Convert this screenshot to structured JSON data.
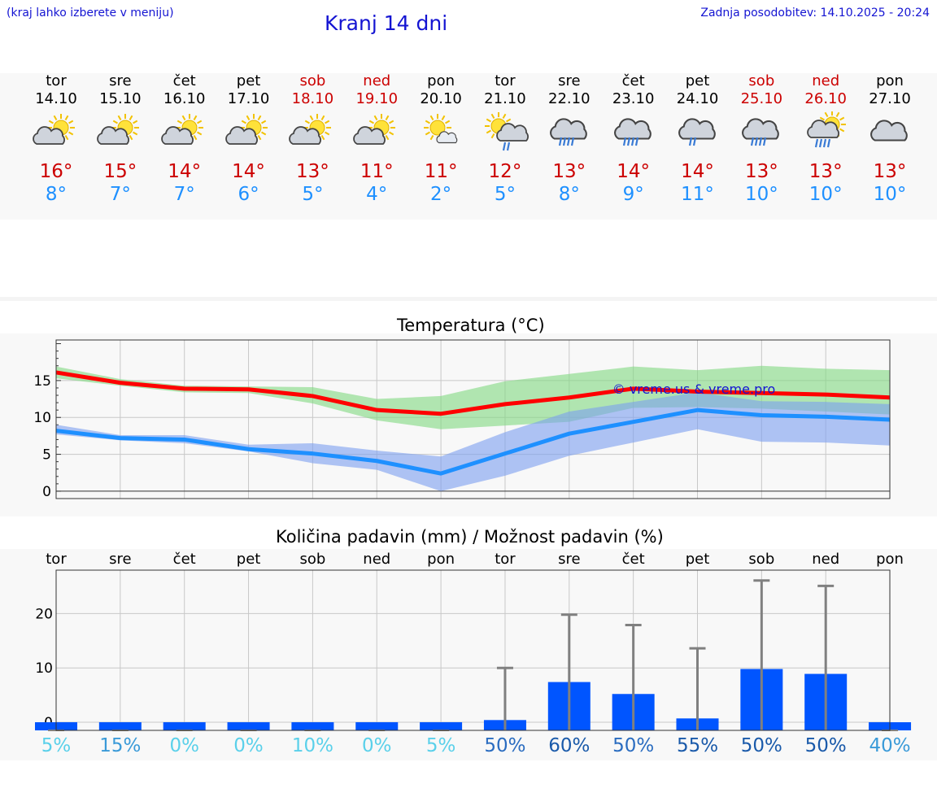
{
  "header": {
    "menu_hint": "(kraj lahko izberete v meniju)",
    "title": "Kranj 14 dni",
    "last_update": "Zadnja posodobitev: 14.10.2025 - 20:24"
  },
  "days": [
    {
      "name": "tor",
      "date": "14.10",
      "weekend": false,
      "icon": "partly-sunny-icon",
      "tmax": "16°",
      "tmin": "8°"
    },
    {
      "name": "sre",
      "date": "15.10",
      "weekend": false,
      "icon": "partly-sunny-icon",
      "tmax": "15°",
      "tmin": "7°"
    },
    {
      "name": "čet",
      "date": "16.10",
      "weekend": false,
      "icon": "partly-sunny-icon",
      "tmax": "14°",
      "tmin": "7°"
    },
    {
      "name": "pet",
      "date": "17.10",
      "weekend": false,
      "icon": "partly-sunny-icon",
      "tmax": "14°",
      "tmin": "6°"
    },
    {
      "name": "sob",
      "date": "18.10",
      "weekend": true,
      "icon": "partly-sunny-icon",
      "tmax": "13°",
      "tmin": "5°"
    },
    {
      "name": "ned",
      "date": "19.10",
      "weekend": true,
      "icon": "partly-sunny-icon",
      "tmax": "11°",
      "tmin": "4°"
    },
    {
      "name": "pon",
      "date": "20.10",
      "weekend": false,
      "icon": "sun-small-cloud-icon",
      "tmax": "11°",
      "tmin": "2°"
    },
    {
      "name": "tor",
      "date": "21.10",
      "weekend": false,
      "icon": "sun-cloud-rain-icon",
      "tmax": "12°",
      "tmin": "5°"
    },
    {
      "name": "sre",
      "date": "22.10",
      "weekend": false,
      "icon": "cloud-rain-icon",
      "tmax": "13°",
      "tmin": "8°"
    },
    {
      "name": "čet",
      "date": "23.10",
      "weekend": false,
      "icon": "cloud-rain-icon",
      "tmax": "14°",
      "tmin": "9°"
    },
    {
      "name": "pet",
      "date": "24.10",
      "weekend": false,
      "icon": "cloud-light-rain-icon",
      "tmax": "14°",
      "tmin": "11°"
    },
    {
      "name": "sob",
      "date": "25.10",
      "weekend": true,
      "icon": "cloud-rain-icon",
      "tmax": "13°",
      "tmin": "10°"
    },
    {
      "name": "ned",
      "date": "26.10",
      "weekend": true,
      "icon": "sun-cloud-heavy-rain-icon",
      "tmax": "13°",
      "tmin": "10°"
    },
    {
      "name": "pon",
      "date": "27.10",
      "weekend": false,
      "icon": "cloudy-icon",
      "tmax": "13°",
      "tmin": "10°"
    }
  ],
  "chart_data": [
    {
      "type": "line",
      "title": "Temperatura (°C)",
      "watermark": "© vreme.us & vreme.pro",
      "ylim": [
        -1,
        20.5
      ],
      "yticks": [
        "0",
        "5",
        "10",
        "15"
      ],
      "yticks_values": [
        0,
        5,
        10,
        15
      ],
      "series": [
        {
          "name": "max",
          "color": "#ff0000",
          "values": [
            16.1,
            14.7,
            13.9,
            13.8,
            12.9,
            11,
            10.5,
            11.8,
            12.7,
            13.9,
            13.5,
            13.3,
            13.1,
            12.7
          ],
          "band_low": [
            15.3,
            14.3,
            13.4,
            13.3,
            11.9,
            9.6,
            8.4,
            8.9,
            9.4,
            11.3,
            11.4,
            11.2,
            10.8,
            10.4
          ],
          "band_high": [
            16.9,
            15.2,
            14.3,
            14.2,
            14.1,
            12.5,
            12.9,
            14.9,
            15.9,
            16.9,
            16.4,
            17,
            16.6,
            16.4
          ],
          "band_color": "#80d880"
        },
        {
          "name": "min",
          "color": "#1e90ff",
          "values": [
            8.2,
            7.2,
            7,
            5.7,
            5.1,
            4.1,
            2.4,
            5.1,
            7.8,
            9.4,
            11,
            10.3,
            10.1,
            9.7
          ],
          "band_low": [
            7.7,
            6.9,
            6.5,
            5.4,
            3.8,
            2.9,
            0,
            2.1,
            4.8,
            6.6,
            8.4,
            6.7,
            6.6,
            6.2
          ],
          "band_high": [
            9,
            7.6,
            7.6,
            6.3,
            6.5,
            5.5,
            4.7,
            8,
            10.8,
            12.1,
            13.4,
            12.2,
            12.1,
            11.8
          ],
          "band_color": "#7b9ff0"
        }
      ]
    },
    {
      "type": "bar",
      "title": "Količina padavin (mm) / Možnost padavin (%)",
      "categories": [
        "tor",
        "sre",
        "čet",
        "pet",
        "sob",
        "ned",
        "pon",
        "tor",
        "sre",
        "čet",
        "pet",
        "sob",
        "ned",
        "pon"
      ],
      "ylim": [
        -1.5,
        28
      ],
      "yticks": [
        "0",
        "10",
        "20"
      ],
      "yticks_values": [
        0,
        10,
        20
      ],
      "values": [
        0,
        0,
        0,
        0,
        0,
        0,
        0,
        0.4,
        7.4,
        5.2,
        0.7,
        9.8,
        8.9,
        0
      ],
      "error_high": [
        0,
        0,
        0,
        0,
        0,
        0,
        0,
        10,
        19.8,
        17.9,
        13.6,
        26.1,
        25.1,
        0
      ],
      "bar_color": "#0055ff",
      "probabilities": [
        "5%",
        "15%",
        "0%",
        "0%",
        "10%",
        "0%",
        "5%",
        "50%",
        "60%",
        "50%",
        "55%",
        "50%",
        "50%",
        "40%"
      ],
      "probability_colors": [
        "#5ad0ea",
        "#3a9ad8",
        "#5ad0ea",
        "#5ad0ea",
        "#5ad0ea",
        "#5ad0ea",
        "#5ad0ea",
        "#2a6cc0",
        "#1a5aaa",
        "#2a6cc0",
        "#1a5aaa",
        "#1a5aaa",
        "#1a5aaa",
        "#3a9ad8"
      ]
    }
  ]
}
